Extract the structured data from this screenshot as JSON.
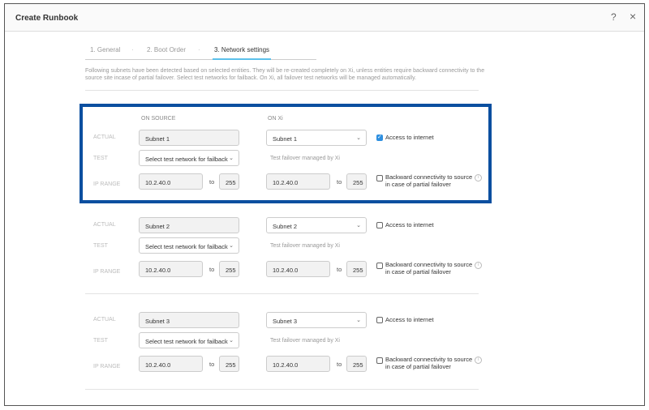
{
  "header": {
    "title": "Create Runbook",
    "help_icon": "?",
    "close_icon": "×"
  },
  "tabs": [
    {
      "label": "1. General"
    },
    {
      "label": "2. Boot Order"
    },
    {
      "label": "3. Network settings",
      "active": true
    }
  ],
  "tab_separator": "·",
  "description": "Following subnets have been detected based on selected entities. They will be re-created completely on Xi, unless entities require backward connectivity to the source site incase of partial failover. Select test networks for failback. On Xi, all failover test networks will be managed automatically.",
  "columns": {
    "source": "ON SOURCE",
    "xi": "ON Xi"
  },
  "labels": {
    "actual": "ACTUAL",
    "test": "TEST",
    "ip_range": "IP RANGE",
    "to": "to"
  },
  "highlight_color": "#0b4fa0",
  "subnets": [
    {
      "source": "Subnet 1",
      "xi": "Subnet 1",
      "test_placeholder": "Select test network for failback",
      "xi_test": "Test failover managed by Xi",
      "src_ip_start": "10.2.40.0",
      "src_ip_end": "255",
      "xi_ip_start": "10.2.40.0",
      "xi_ip_end": "255",
      "access_label": "Access to internet",
      "access_checked": true,
      "backward_label": "Backward connectivity to source in case of partial failover",
      "backward_checked": false
    },
    {
      "source": "Subnet 2",
      "xi": "Subnet 2",
      "test_placeholder": "Select test network for failback",
      "xi_test": "Test failover managed by Xi",
      "src_ip_start": "10.2.40.0",
      "src_ip_end": "255",
      "xi_ip_start": "10.2.40.0",
      "xi_ip_end": "255",
      "access_label": "Access to internet",
      "access_checked": false,
      "backward_label": "Backward connectivity to source in case of partial failover",
      "backward_checked": false
    },
    {
      "source": "Subnet 3",
      "xi": "Subnet 3",
      "test_placeholder": "Select test network for failback",
      "xi_test": "Test failover managed by Xi",
      "src_ip_start": "10.2.40.0",
      "src_ip_end": "255",
      "xi_ip_start": "10.2.40.0",
      "xi_ip_end": "255",
      "access_label": "Access to internet",
      "access_checked": false,
      "backward_label": "Backward connectivity to source in case of partial failover",
      "backward_checked": false
    }
  ]
}
